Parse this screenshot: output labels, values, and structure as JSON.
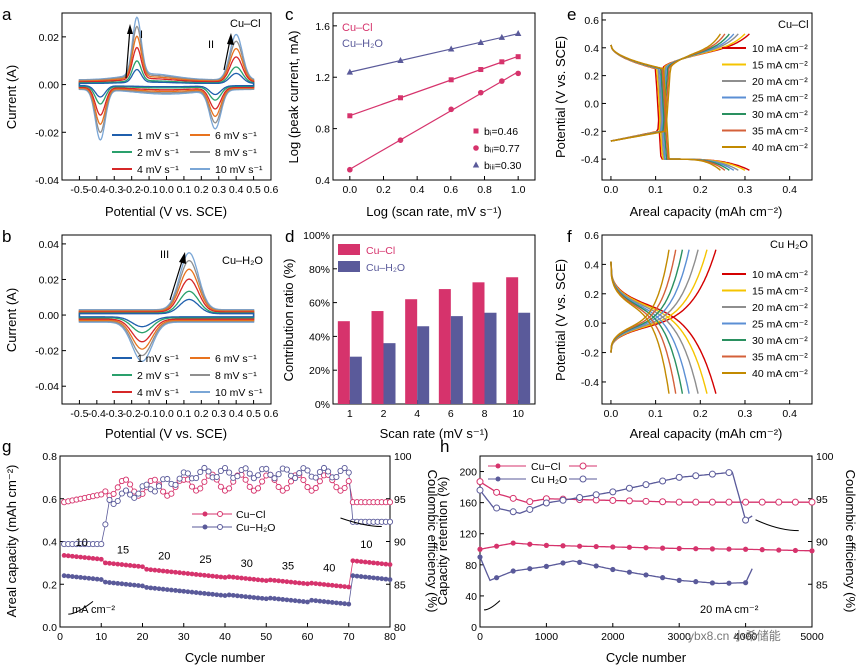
{
  "colors": {
    "cv_series": [
      "#1f5fad",
      "#2aa06c",
      "#d62728",
      "#e8731e",
      "#8f8f8f",
      "#7aa6d6"
    ],
    "cucl": "#d6336c",
    "cuh2o": "#5a5a9a",
    "gcd_cucl": [
      "#d40000",
      "#f5c400",
      "#8e8e8e",
      "#5b8fd4",
      "#2a9060",
      "#d4603a",
      "#c28a00"
    ],
    "gcd_cuh2o": [
      "#d40000",
      "#f5c400",
      "#8e8e8e",
      "#5b8fd4",
      "#2a9060",
      "#d4603a",
      "#c28a00"
    ]
  },
  "watermark": "ybx8.cn 小希储能",
  "panels": {
    "a": {
      "label": "a",
      "sample": "Cu–Cl",
      "peak_I": "I",
      "peak_II": "II"
    },
    "b": {
      "label": "b",
      "sample": "Cu–H₂O",
      "peak_III": "III"
    },
    "c": {
      "label": "c"
    },
    "d": {
      "label": "d"
    },
    "e": {
      "label": "e",
      "sample": "Cu–Cl"
    },
    "f": {
      "label": "f",
      "sample": "Cu  H₂O"
    },
    "g": {
      "label": "g",
      "rate_labels": [
        "10",
        "15",
        "20",
        "25",
        "30",
        "35",
        "40",
        "10"
      ],
      "unit": "mA cm⁻²"
    },
    "h": {
      "label": "h",
      "current_label": "20 mA cm⁻²"
    }
  },
  "chart_data": [
    {
      "id": "a",
      "type": "line",
      "title": "Cu–Cl",
      "xlabel": "Potential (V vs. SCE)",
      "ylabel": "Current (A)",
      "xlim": [
        -0.6,
        0.6
      ],
      "ylim": [
        -0.04,
        0.03
      ],
      "xticks": [
        -0.6,
        -0.5,
        -0.4,
        -0.3,
        -0.2,
        -0.1,
        0.0,
        0.1,
        0.2,
        0.3,
        0.4,
        0.5,
        0.6
      ],
      "xticklabels": [
        "",
        "-0.5",
        "-0.4",
        "-0.3",
        "-0.2",
        "-0.1",
        "0.0",
        "0.1",
        "0.2",
        "0.3",
        "0.4",
        "0.5",
        "0.6"
      ],
      "yticks": [
        -0.04,
        -0.02,
        0.0,
        0.02
      ],
      "yticklabels": [
        "-0.04",
        "-0.02",
        "0.00",
        "0.02"
      ],
      "legend": [
        "1 mV s⁻¹",
        "2 mV s⁻¹",
        "4 mV s⁻¹",
        "6 mV s⁻¹",
        "8 mV s⁻¹",
        "10 mV s⁻¹"
      ],
      "scan_rates": [
        1,
        2,
        4,
        6,
        8,
        10
      ],
      "peaks": {
        "anodic_I": {
          "x": -0.17,
          "y_at_10": 0.026
        },
        "anodic_II": {
          "x": 0.4,
          "y_at_10": 0.021
        },
        "cathodic_low": {
          "x": -0.38,
          "y_at_10": -0.023
        },
        "cathodic_high": {
          "x": 0.28,
          "y_at_10": -0.018
        }
      }
    },
    {
      "id": "b",
      "type": "line",
      "title": "Cu–H₂O",
      "xlabel": "Potential (V vs. SCE)",
      "ylabel": "Current (A)",
      "xlim": [
        -0.6,
        0.6
      ],
      "ylim": [
        -0.05,
        0.045
      ],
      "xticks": [
        -0.6,
        -0.5,
        -0.4,
        -0.3,
        -0.2,
        -0.1,
        0.0,
        0.1,
        0.2,
        0.3,
        0.4,
        0.5,
        0.6
      ],
      "xticklabels": [
        "",
        "-0.5",
        "-0.4",
        "-0.3",
        "-0.2",
        "-0.1",
        "0.0",
        "0.1",
        "0.2",
        "0.3",
        "0.4",
        "0.5",
        "0.6"
      ],
      "yticks": [
        -0.04,
        -0.02,
        0.0,
        0.02,
        0.04
      ],
      "yticklabels": [
        "-0.04",
        "-0.02",
        "0.00",
        "0.02",
        "0.04"
      ],
      "legend": [
        "1 mV s⁻¹",
        "2 mV s⁻¹",
        "4 mV s⁻¹",
        "6 mV s⁻¹",
        "8 mV s⁻¹",
        "10 mV s⁻¹"
      ],
      "scan_rates": [
        1,
        2,
        4,
        6,
        8,
        10
      ],
      "peaks": {
        "anodic_III": {
          "x": 0.13,
          "y_at_10": 0.036
        },
        "cathodic": {
          "x": -0.14,
          "y_at_10": -0.027
        }
      }
    },
    {
      "id": "c",
      "type": "scatter",
      "xlabel": "Log (scan rate, mV s⁻¹)",
      "ylabel": "Log (peak current, mA)",
      "xlim": [
        -0.1,
        1.1
      ],
      "ylim": [
        0.4,
        1.7
      ],
      "xticks": [
        0.0,
        0.2,
        0.4,
        0.6,
        0.8,
        1.0
      ],
      "xticklabels": [
        "0.0",
        "0.2",
        "0.4",
        "0.6",
        "0.8",
        "1.0"
      ],
      "yticks": [
        0.4,
        0.8,
        1.2,
        1.6
      ],
      "yticklabels": [
        "0.4",
        "0.8",
        "1.2",
        "1.6"
      ],
      "legend_top": [
        "Cu–Cl",
        "Cu–H₂O"
      ],
      "x": [
        0.0,
        0.301,
        0.602,
        0.778,
        0.903,
        1.0
      ],
      "series": [
        {
          "name": "bᵢ=0.46",
          "marker": "square",
          "values": [
            0.9,
            1.04,
            1.18,
            1.26,
            1.32,
            1.36
          ]
        },
        {
          "name": "bᵢᵢ=0.77",
          "marker": "circle",
          "values": [
            0.48,
            0.71,
            0.95,
            1.08,
            1.17,
            1.23
          ]
        },
        {
          "name": "bᵢᵢᵢ=0.30",
          "marker": "triangle",
          "values": [
            1.24,
            1.33,
            1.42,
            1.47,
            1.51,
            1.54
          ]
        }
      ]
    },
    {
      "id": "d",
      "type": "bar",
      "xlabel": "Scan rate (mV s⁻¹)",
      "ylabel": "Contribution ratio (%)",
      "ylim": [
        0,
        100
      ],
      "yticks": [
        0,
        20,
        40,
        60,
        80,
        100
      ],
      "yticklabels": [
        "0%",
        "20%",
        "40%",
        "60%",
        "80%",
        "100%"
      ],
      "categories": [
        "1",
        "2",
        "4",
        "6",
        "8",
        "10"
      ],
      "series": [
        {
          "name": "Cu–Cl",
          "values": [
            49,
            55,
            62,
            68,
            72,
            75
          ]
        },
        {
          "name": "Cu–H₂O",
          "values": [
            28,
            36,
            46,
            52,
            54,
            54
          ]
        }
      ]
    },
    {
      "id": "e",
      "type": "line",
      "title": "Cu–Cl",
      "xlabel": "Areal capacity (mAh cm⁻²)",
      "ylabel": "Potential (V vs. SCE)",
      "xlim": [
        -0.02,
        0.45
      ],
      "ylim": [
        -0.55,
        0.65
      ],
      "xticks": [
        0.0,
        0.1,
        0.2,
        0.3,
        0.4
      ],
      "xticklabels": [
        "0.0",
        "0.1",
        "0.2",
        "0.3",
        "0.4"
      ],
      "yticks": [
        -0.4,
        -0.2,
        0.0,
        0.2,
        0.4,
        0.6
      ],
      "yticklabels": [
        "-0.4",
        "-0.2",
        "0.0",
        "0.2",
        "0.4",
        "0.6"
      ],
      "legend": [
        "10 mA cm⁻²",
        "15 mA cm⁻²",
        "20 mA cm⁻²",
        "25 mA cm⁻²",
        "30 mA cm⁻²",
        "35 mA cm⁻²",
        "40 mA cm⁻²"
      ],
      "capacities": [
        0.31,
        0.3,
        0.285,
        0.275,
        0.265,
        0.255,
        0.245
      ]
    },
    {
      "id": "f",
      "type": "line",
      "title": "Cu  H₂O",
      "xlabel": "Areal capacity (mAh cm⁻²)",
      "ylabel": "Potential (V vs. SCE)",
      "xlim": [
        -0.02,
        0.45
      ],
      "ylim": [
        -0.55,
        0.6
      ],
      "xticks": [
        0.0,
        0.1,
        0.2,
        0.3,
        0.4
      ],
      "xticklabels": [
        "0.0",
        "0.1",
        "0.2",
        "0.3",
        "0.4"
      ],
      "yticks": [
        -0.4,
        -0.2,
        0.0,
        0.2,
        0.4,
        0.6
      ],
      "yticklabels": [
        "-0.4",
        "-0.2",
        "0.0",
        "0.2",
        "0.4",
        "0.6"
      ],
      "legend": [
        "10 mA cm⁻²",
        "15 mA cm⁻²",
        "20 mA cm⁻²",
        "25 mA cm⁻²",
        "30 mA cm⁻²",
        "35 mA cm⁻²",
        "40 mA cm⁻²"
      ],
      "capacities": [
        0.235,
        0.215,
        0.195,
        0.175,
        0.16,
        0.145,
        0.13
      ]
    },
    {
      "id": "g",
      "type": "scatter",
      "xlabel": "Cycle number",
      "ylabel": "Areal capacity (mAh cm⁻²)",
      "ylabel_right": "Coulombic efficiency (%)",
      "xlim": [
        0,
        80
      ],
      "ylim": [
        0,
        0.8
      ],
      "ylim_right": [
        80,
        100
      ],
      "xticks": [
        0,
        10,
        20,
        30,
        40,
        50,
        60,
        70,
        80
      ],
      "xticklabels": [
        "0",
        "10",
        "20",
        "30",
        "40",
        "50",
        "60",
        "70",
        "80"
      ],
      "yticks": [
        0,
        0.2,
        0.4,
        0.6,
        0.8
      ],
      "yticklabels": [
        "0.0",
        "0.2",
        "0.4",
        "0.6",
        "0.8"
      ],
      "yticks_right": [
        80,
        85,
        90,
        95,
        100
      ],
      "yticklabels_right": [
        "80",
        "85",
        "90",
        "95",
        "100"
      ],
      "legend": [
        "Cu−Cl",
        "Cu−H₂O"
      ],
      "series": [
        {
          "name": "Cu−Cl capacity",
          "segments": [
            [
              1,
              10,
              0.335
            ],
            [
              11,
              20,
              0.3
            ],
            [
              21,
              30,
              0.27
            ],
            [
              31,
              40,
              0.25
            ],
            [
              41,
              50,
              0.235
            ],
            [
              51,
              60,
              0.22
            ],
            [
              61,
              70,
              0.205
            ],
            [
              71,
              80,
              0.31
            ]
          ]
        },
        {
          "name": "Cu−H₂O capacity",
          "segments": [
            [
              1,
              10,
              0.24
            ],
            [
              11,
              20,
              0.21
            ],
            [
              21,
              30,
              0.185
            ],
            [
              31,
              40,
              0.165
            ],
            [
              41,
              50,
              0.15
            ],
            [
              51,
              60,
              0.135
            ],
            [
              61,
              70,
              0.125
            ],
            [
              71,
              80,
              0.24
            ]
          ]
        },
        {
          "name": "Cu−Cl CE",
          "values_range": [
            94.5,
            98.5
          ]
        },
        {
          "name": "Cu−H₂O CE",
          "values_range": [
            89.5,
            99.2
          ]
        }
      ]
    },
    {
      "id": "h",
      "type": "scatter",
      "xlabel": "Cycle number",
      "ylabel": "Capacity retention (%)",
      "ylabel_right": "Coulombic efficiency (%)",
      "xlim": [
        0,
        5000
      ],
      "ylim": [
        0,
        220
      ],
      "ylim_right": [
        80,
        100
      ],
      "xticks": [
        0,
        1000,
        2000,
        3000,
        4000,
        5000
      ],
      "xticklabels": [
        "0",
        "1000",
        "2000",
        "3000",
        "4000",
        "5000"
      ],
      "yticks": [
        0,
        40,
        80,
        120,
        160,
        200
      ],
      "yticklabels": [
        "0",
        "40",
        "80",
        "120",
        "160",
        "200"
      ],
      "yticks_right": [
        85,
        90,
        95,
        100
      ],
      "yticklabels_right": [
        "85",
        "90",
        "95",
        "100"
      ],
      "legend": [
        "Cu−Cl",
        "Cu H₂O"
      ],
      "series": [
        {
          "name": "Cu−Cl retention",
          "x": [
            0,
            500,
            1000,
            2000,
            3000,
            4000,
            5000
          ],
          "values": [
            100,
            108,
            105,
            103,
            101,
            100,
            98
          ]
        },
        {
          "name": "Cu−H₂O retention",
          "x": [
            0,
            150,
            500,
            1000,
            1400,
            2000,
            3000,
            3600,
            4000,
            4100
          ],
          "values": [
            90,
            60,
            72,
            78,
            85,
            74,
            60,
            56,
            57,
            75
          ]
        },
        {
          "name": "Cu−Cl CE",
          "x": [
            0,
            300,
            700,
            1000,
            2000,
            3000,
            4000,
            5000
          ],
          "values": [
            97,
            95.5,
            94.6,
            95,
            94.8,
            94.6,
            94.6,
            94.6
          ]
        },
        {
          "name": "Cu−H₂O CE",
          "x": [
            0,
            200,
            600,
            1000,
            2000,
            3000,
            3800,
            4000,
            4100
          ],
          "values": [
            96,
            94,
            93.3,
            94.5,
            95.8,
            97.5,
            98.1,
            92.5,
            93
          ]
        }
      ]
    }
  ]
}
